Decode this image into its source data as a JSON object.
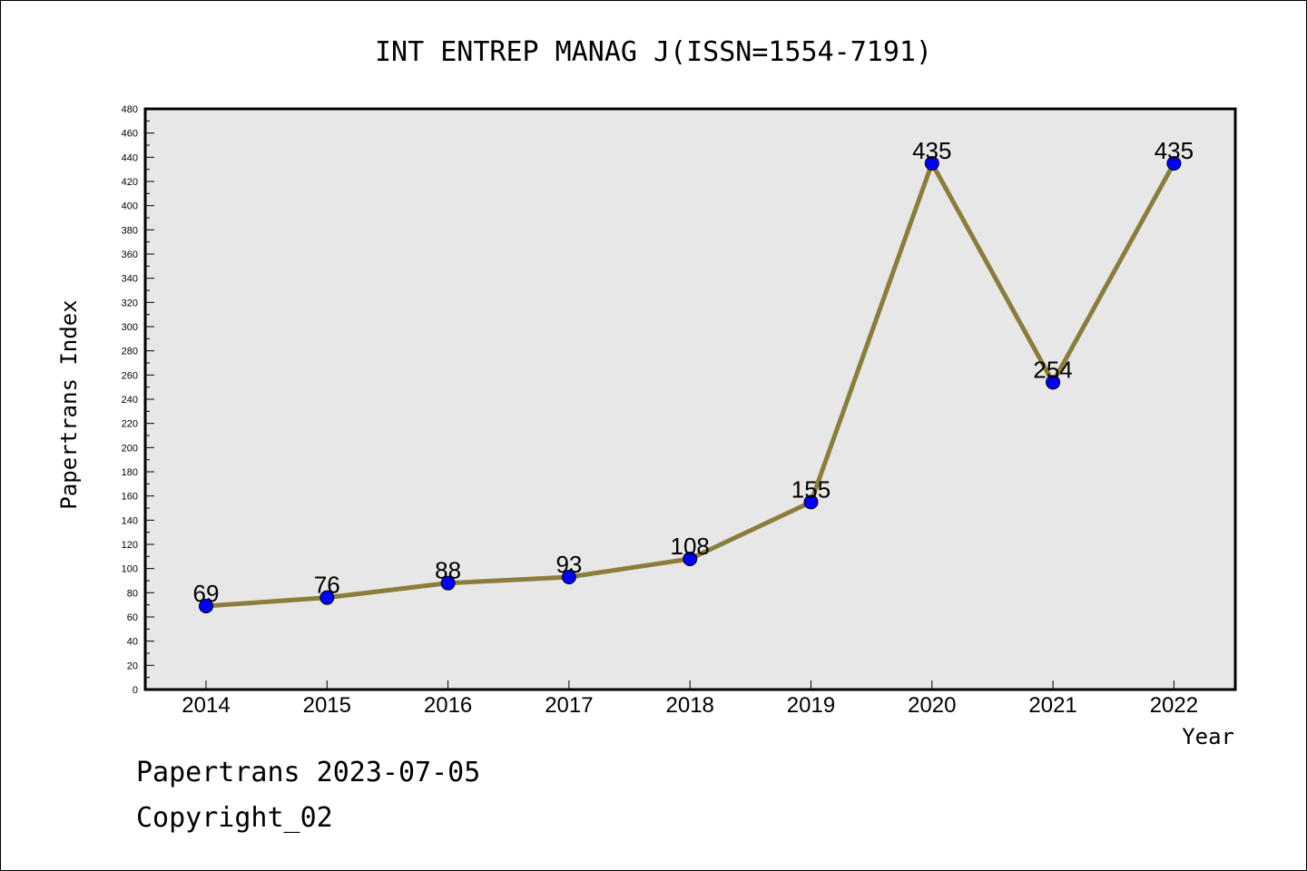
{
  "chart_data": {
    "type": "line",
    "title": "INT ENTREP MANAG J(ISSN=1554-7191)",
    "xlabel": "Year",
    "ylabel": "Papertrans Index",
    "categories": [
      "2014",
      "2015",
      "2016",
      "2017",
      "2018",
      "2019",
      "2020",
      "2021",
      "2022"
    ],
    "values": [
      69,
      76,
      88,
      93,
      108,
      155,
      435,
      254,
      435
    ],
    "ylim": [
      0,
      480
    ],
    "ytick_step": 20,
    "grid": false,
    "colors": {
      "line": "#8B7D3A",
      "marker": "#0000FF",
      "plot_background": "#E7E7E7"
    }
  },
  "footer": {
    "source": "Papertrans 2023-07-05",
    "copyright": "Copyright_02"
  }
}
